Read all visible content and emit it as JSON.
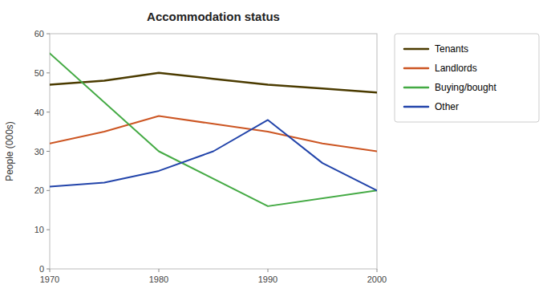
{
  "chart_data": {
    "type": "line",
    "title": "Accommodation status",
    "ylabel": "People (000s)",
    "xlim": [
      1970,
      2000
    ],
    "xticks": [
      1970,
      1980,
      1990,
      2000
    ],
    "ylim": [
      0,
      60
    ],
    "yticks": [
      0,
      10,
      20,
      30,
      40,
      50,
      60
    ],
    "grid": false,
    "legend": "right",
    "series": [
      {
        "name": "Tenants",
        "color": "#4B3B00",
        "x": [
          1970,
          1975,
          1980,
          1985,
          1990,
          1995,
          2000
        ],
        "values": [
          47,
          48,
          50,
          48.5,
          47,
          46,
          45
        ]
      },
      {
        "name": "Landlords",
        "color": "#CC5522",
        "x": [
          1970,
          1975,
          1980,
          1985,
          1990,
          1995,
          2000
        ],
        "values": [
          32,
          35,
          39,
          37,
          35,
          32,
          30
        ]
      },
      {
        "name": "Buying/bought",
        "color": "#44AA44",
        "x": [
          1970,
          1980,
          1990,
          2000
        ],
        "values": [
          55,
          30,
          16,
          20
        ]
      },
      {
        "name": "Other",
        "color": "#2244AA",
        "x": [
          1970,
          1975,
          1980,
          1985,
          1990,
          1995,
          2000
        ],
        "values": [
          21,
          22,
          25,
          30,
          38,
          27,
          20
        ]
      }
    ]
  }
}
